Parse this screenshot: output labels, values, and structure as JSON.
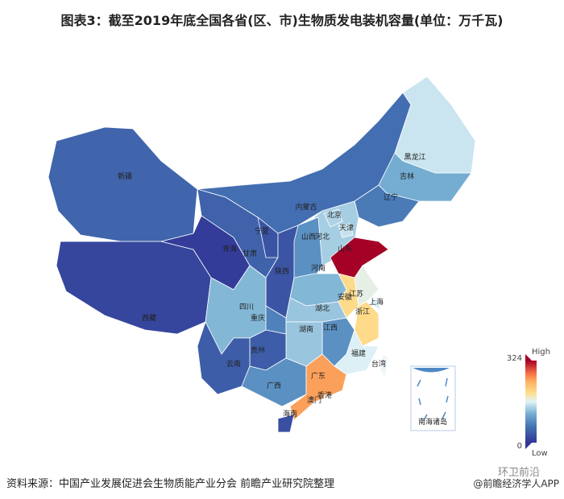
{
  "title": "图表3：截至2019年底全国各省(区、市)生物质发电装机容量(单位：万千瓦)",
  "source": "资料来源：中国产业发展促进会生物质能产业分会  前瞻产业研究院整理",
  "watermark": "@前瞻经济学人APP",
  "watermark2": "环卫前沿",
  "legend": {
    "max_label": "324",
    "min_label": "0",
    "high": "High",
    "low": "Low",
    "colors": [
      "#313695",
      "#4575b4",
      "#74add1",
      "#e0f3f8",
      "#fee090",
      "#fdae61",
      "#f46d43",
      "#a50026"
    ]
  },
  "inset_label": "南海诸岛",
  "no_data_color": "#eef6fa",
  "chart_data": {
    "type": "choropleth",
    "unit": "万千瓦",
    "range": [
      0,
      324
    ],
    "regions": [
      {
        "name": "新疆",
        "value": 48
      },
      {
        "name": "西藏",
        "value": 16
      },
      {
        "name": "青海",
        "value": 6
      },
      {
        "name": "甘肃",
        "value": 45
      },
      {
        "name": "内蒙古",
        "value": 58
      },
      {
        "name": "宁夏",
        "value": 30
      },
      {
        "name": "陕西",
        "value": 32
      },
      {
        "name": "黑龙江",
        "value": 152
      },
      {
        "name": "吉林",
        "value": 113
      },
      {
        "name": "辽宁",
        "value": 70
      },
      {
        "name": "河北",
        "value": 136
      },
      {
        "name": "北京",
        "value": 140
      },
      {
        "name": "天津",
        "value": 150
      },
      {
        "name": "山西",
        "value": 88
      },
      {
        "name": "山东",
        "value": 324
      },
      {
        "name": "河南",
        "value": 120
      },
      {
        "name": "四川",
        "value": 120
      },
      {
        "name": "重庆",
        "value": 75
      },
      {
        "name": "湖北",
        "value": 130
      },
      {
        "name": "安徽",
        "value": 200
      },
      {
        "name": "江苏",
        "value": 168
      },
      {
        "name": "上海",
        "value": 160
      },
      {
        "name": "浙江",
        "value": 200
      },
      {
        "name": "江西",
        "value": 88
      },
      {
        "name": "湖南",
        "value": 130
      },
      {
        "name": "贵州",
        "value": 40
      },
      {
        "name": "云南",
        "value": 40
      },
      {
        "name": "广西",
        "value": 88
      },
      {
        "name": "广东",
        "value": 250
      },
      {
        "name": "福建",
        "value": 160
      },
      {
        "name": "海南",
        "value": 26
      },
      {
        "name": "台湾",
        "value": null
      },
      {
        "name": "香港",
        "value": null
      },
      {
        "name": "澳门",
        "value": null
      }
    ]
  }
}
